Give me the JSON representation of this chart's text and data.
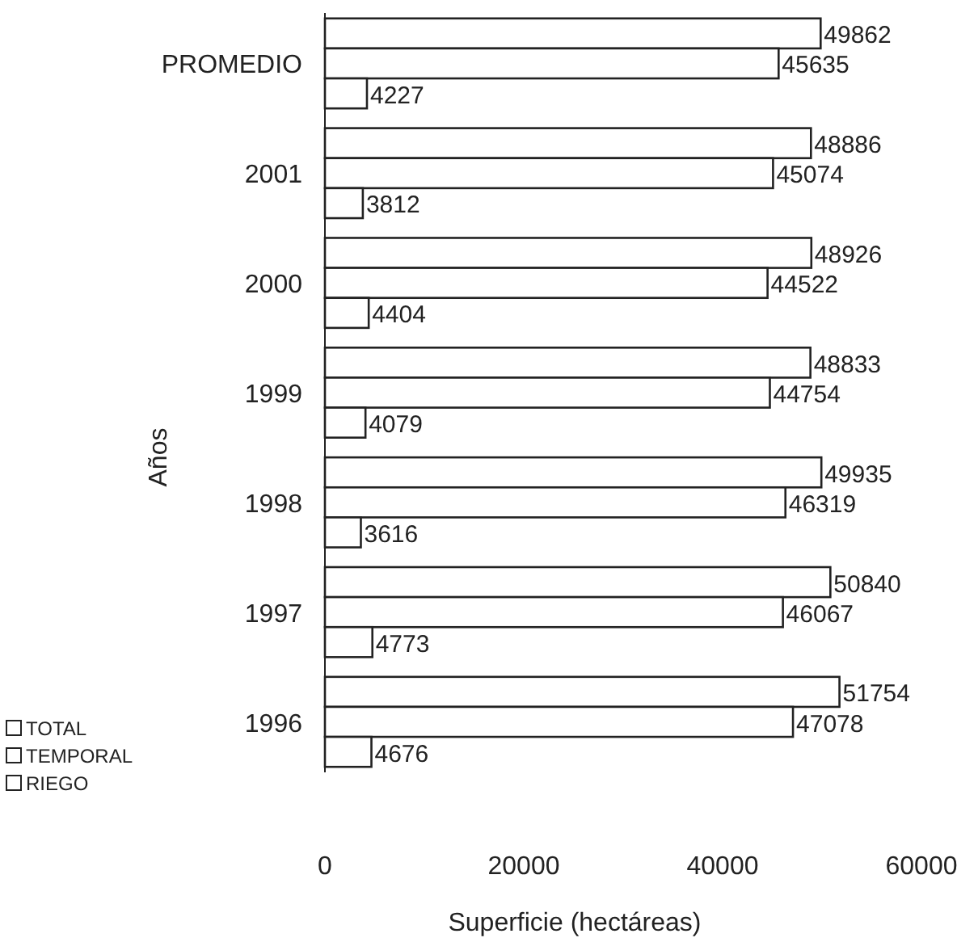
{
  "chart_data": {
    "type": "bar",
    "orientation": "horizontal",
    "xlabel": "Superficie (hectáreas)",
    "ylabel": "Años",
    "categories": [
      "PROMEDIO",
      "2001",
      "2000",
      "1999",
      "1998",
      "1997",
      "1996"
    ],
    "series": [
      {
        "name": "TOTAL",
        "color": "#ffffff",
        "values": [
          49862,
          48886,
          48926,
          48833,
          49935,
          50840,
          51754
        ]
      },
      {
        "name": "TEMPORAL",
        "color": "#ffffff",
        "values": [
          45635,
          45074,
          44522,
          44754,
          46319,
          46067,
          47078
        ]
      },
      {
        "name": "RIEGO",
        "color": "#ffffff",
        "values": [
          4227,
          3812,
          4404,
          4079,
          3616,
          4773,
          4676
        ]
      }
    ],
    "xlim": [
      0,
      60000
    ],
    "xticks": [
      0,
      20000,
      40000,
      60000
    ],
    "data_labels": true,
    "legend": "bottom left",
    "grid": false
  }
}
